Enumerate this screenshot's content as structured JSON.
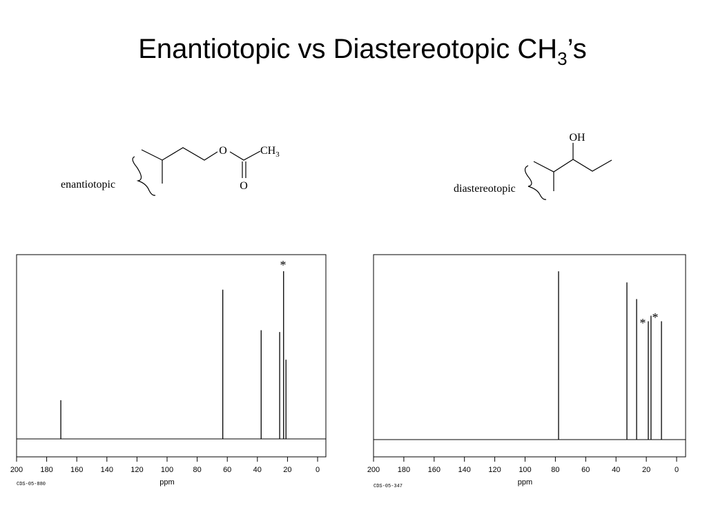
{
  "title": {
    "main": "Enantiotopic vs Diastereotopic CH",
    "sub": "3",
    "tail": "’s"
  },
  "molecules": [
    {
      "label": "enantiotopic",
      "atoms": [
        "O",
        "CH",
        "3",
        "O"
      ]
    },
    {
      "label": "diastereotopic",
      "atoms": [
        "OH"
      ]
    }
  ],
  "chart_data": [
    {
      "type": "spectrum",
      "x": [
        170.6,
        63,
        37.5,
        25.2,
        22.6,
        21
      ],
      "values": [
        21,
        81,
        59,
        58,
        91,
        43
      ],
      "xlim": [
        200,
        0
      ],
      "xticks": [
        200,
        180,
        160,
        140,
        120,
        100,
        80,
        60,
        40,
        20,
        0
      ],
      "ylim": [
        0,
        100
      ],
      "xlabel": "ppm",
      "footer": "CDS-05-880",
      "annotations": [
        "*"
      ],
      "color": "#000000"
    },
    {
      "type": "spectrum",
      "x": [
        77.9,
        32.8,
        26.4,
        18.7,
        16.9,
        10
      ],
      "values": [
        91,
        85,
        76,
        64,
        67,
        64
      ],
      "xlim": [
        200,
        0
      ],
      "xticks": [
        200,
        180,
        160,
        140,
        120,
        100,
        80,
        60,
        40,
        20,
        0
      ],
      "ylim": [
        0,
        100
      ],
      "xlabel": "ppm",
      "footer": "CDS-05-347",
      "annotations": [
        "*",
        "*"
      ],
      "color": "#000000"
    }
  ]
}
